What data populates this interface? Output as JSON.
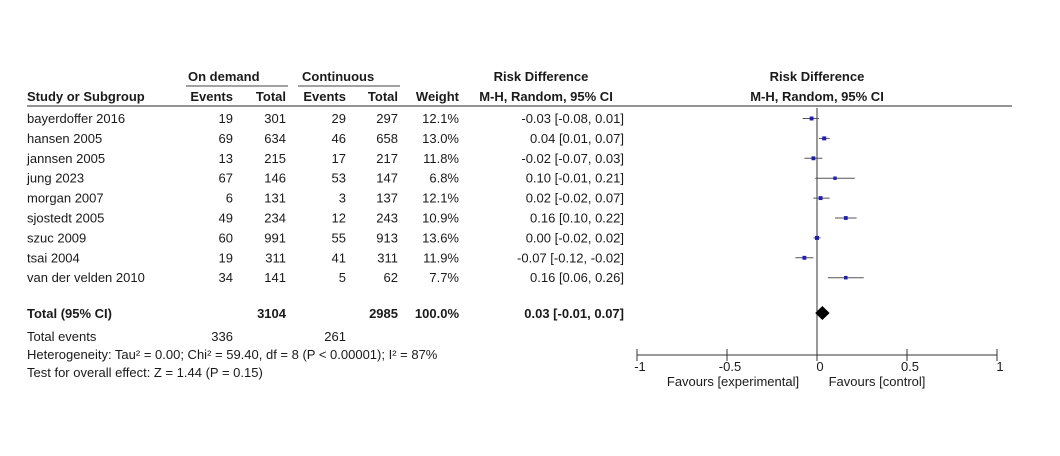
{
  "header": {
    "group1": "On demand",
    "group2": "Continuous",
    "rd_header": "Risk Difference",
    "rd_plot_header": "Risk Difference",
    "col_study": "Study or Subgroup",
    "col_events1": "Events",
    "col_total1": "Total",
    "col_events2": "Events",
    "col_total2": "Total",
    "col_weight": "Weight",
    "col_method": "M-H, Random, 95% CI",
    "col_method_plot": "M-H, Random, 95% CI"
  },
  "studies": [
    {
      "name": "bayerdoffer 2016",
      "e1": "19",
      "t1": "301",
      "e2": "29",
      "t2": "297",
      "weight": "12.1%",
      "ci": "-0.03 [-0.08, 0.01]"
    },
    {
      "name": "hansen 2005",
      "e1": "69",
      "t1": "634",
      "e2": "46",
      "t2": "658",
      "weight": "13.0%",
      "ci": "0.04 [0.01, 0.07]"
    },
    {
      "name": "jannsen 2005",
      "e1": "13",
      "t1": "215",
      "e2": "17",
      "t2": "217",
      "weight": "11.8%",
      "ci": "-0.02 [-0.07, 0.03]"
    },
    {
      "name": "jung 2023",
      "e1": "67",
      "t1": "146",
      "e2": "53",
      "t2": "147",
      "weight": "6.8%",
      "ci": "0.10 [-0.01, 0.21]"
    },
    {
      "name": "morgan 2007",
      "e1": "6",
      "t1": "131",
      "e2": "3",
      "t2": "137",
      "weight": "12.1%",
      "ci": "0.02 [-0.02, 0.07]"
    },
    {
      "name": "sjostedt 2005",
      "e1": "49",
      "t1": "234",
      "e2": "12",
      "t2": "243",
      "weight": "10.9%",
      "ci": "0.16 [0.10, 0.22]"
    },
    {
      "name": "szuc 2009",
      "e1": "60",
      "t1": "991",
      "e2": "55",
      "t2": "913",
      "weight": "13.6%",
      "ci": "0.00 [-0.02, 0.02]"
    },
    {
      "name": "tsai 2004",
      "e1": "19",
      "t1": "311",
      "e2": "41",
      "t2": "311",
      "weight": "11.9%",
      "ci": "-0.07 [-0.12, -0.02]"
    },
    {
      "name": "van der velden 2010",
      "e1": "34",
      "t1": "141",
      "e2": "5",
      "t2": "62",
      "weight": "7.7%",
      "ci": "0.16 [0.06, 0.26]"
    }
  ],
  "total": {
    "label": "Total (95% CI)",
    "t1": "3104",
    "t2": "2985",
    "weight": "100.0%",
    "ci": "0.03 [-0.01, 0.07]"
  },
  "total_events": {
    "label": "Total events",
    "e1": "336",
    "e2": "261"
  },
  "heterogeneity": "Heterogeneity: Tau² = 0.00; Chi² = 59.40, df = 8 (P < 0.00001); I² = 87%",
  "overall_effect": "Test for overall effect: Z = 1.44 (P = 0.15)",
  "axis_labels": {
    "left": "Favours [experimental]",
    "right": "Favours [control]"
  },
  "chart_data": {
    "type": "scatter",
    "subtype": "forest",
    "xlim": [
      -1,
      1
    ],
    "xticks": [
      -1,
      -0.5,
      0,
      0.5,
      1
    ],
    "xtick_labels": [
      "-1",
      "-0.5",
      "0",
      "0.5",
      "1"
    ],
    "studies": [
      {
        "name": "bayerdoffer 2016",
        "est": -0.03,
        "lo": -0.08,
        "hi": 0.01,
        "weight": 12.1
      },
      {
        "name": "hansen 2005",
        "est": 0.04,
        "lo": 0.01,
        "hi": 0.07,
        "weight": 13.0
      },
      {
        "name": "jannsen 2005",
        "est": -0.02,
        "lo": -0.07,
        "hi": 0.03,
        "weight": 11.8
      },
      {
        "name": "jung 2023",
        "est": 0.1,
        "lo": -0.01,
        "hi": 0.21,
        "weight": 6.8
      },
      {
        "name": "morgan 2007",
        "est": 0.02,
        "lo": -0.02,
        "hi": 0.07,
        "weight": 12.1
      },
      {
        "name": "sjostedt 2005",
        "est": 0.16,
        "lo": 0.1,
        "hi": 0.22,
        "weight": 10.9
      },
      {
        "name": "szuc 2009",
        "est": 0.0,
        "lo": -0.02,
        "hi": 0.02,
        "weight": 13.6
      },
      {
        "name": "tsai 2004",
        "est": -0.07,
        "lo": -0.12,
        "hi": -0.02,
        "weight": 11.9
      },
      {
        "name": "van der velden 2010",
        "est": 0.16,
        "lo": 0.06,
        "hi": 0.26,
        "weight": 7.7
      }
    ],
    "pooled": {
      "est": 0.03,
      "lo": -0.01,
      "hi": 0.07
    },
    "colors": {
      "square": "#1f1fb0",
      "line": "#555555",
      "diamond": "#000000",
      "axis": "#333333"
    }
  }
}
